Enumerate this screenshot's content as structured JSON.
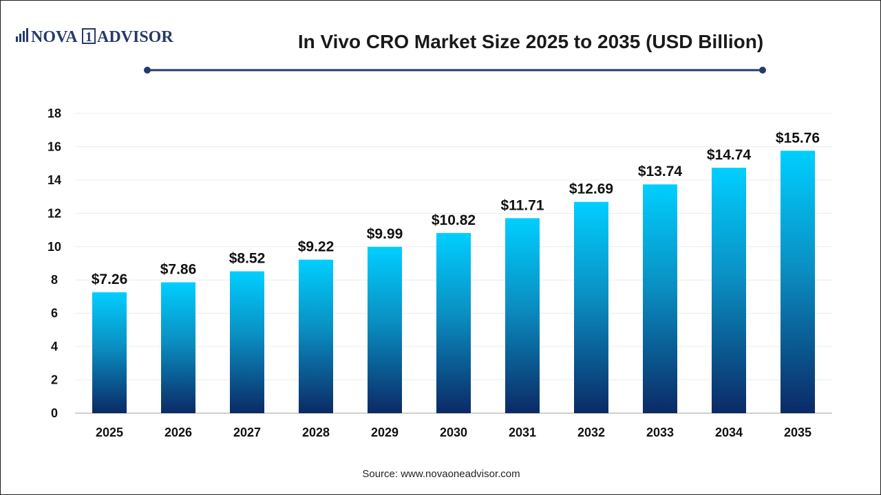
{
  "header": {
    "logo_text_left": "NOVA",
    "logo_text_box": "1",
    "logo_text_right": "ADVISOR",
    "logo_icon": "bar-chart-icon"
  },
  "colors": {
    "title": "#1a1a1a",
    "rule": "#253a6b",
    "bar_top": "#00cfff",
    "bar_mid": "#0a8fc2",
    "bar_bottom": "#0b2a66",
    "logo": "#253a6b"
  },
  "chart_data": {
    "type": "bar",
    "title": "In Vivo CRO Market Size 2025 to 2035 (USD Billion)",
    "xlabel": "",
    "ylabel": "",
    "categories": [
      "2025",
      "2026",
      "2027",
      "2028",
      "2029",
      "2030",
      "2031",
      "2032",
      "2033",
      "2034",
      "2035"
    ],
    "values": [
      7.26,
      7.86,
      8.52,
      9.22,
      9.99,
      10.82,
      11.71,
      12.69,
      13.74,
      14.74,
      15.76
    ],
    "data_labels": [
      "$7.26",
      "$7.86",
      "$8.52",
      "$9.22",
      "$9.99",
      "$10.82",
      "$11.71",
      "$12.69",
      "$13.74",
      "$14.74",
      "$15.76"
    ],
    "ylim": [
      0,
      18
    ],
    "yticks": [
      "0",
      "2",
      "4",
      "6",
      "8",
      "10",
      "12",
      "14",
      "16",
      "18"
    ],
    "grid": true,
    "legend": "none"
  },
  "footer": {
    "source": "Source: www.novaoneadvisor.com"
  }
}
